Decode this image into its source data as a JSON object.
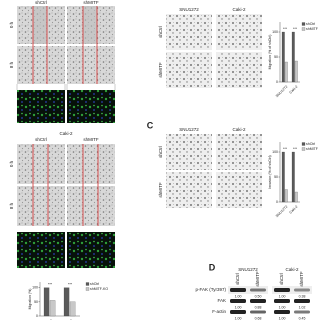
{
  "panel_a": {
    "column_labels": [
      "shCtrl",
      "shMITF"
    ],
    "row_labels": [
      "0 h",
      "8 h"
    ]
  },
  "panel_a2": {
    "cell_line": "Caki-2",
    "column_labels": [
      "shCtrl",
      "shMITF"
    ],
    "row_labels": [
      "0 h",
      "8 h"
    ]
  },
  "panel_b": {
    "cell_lines": [
      "SNU1272",
      "Caki-2"
    ],
    "row_labels": [
      "shCtrl",
      "shMITF"
    ]
  },
  "panel_c": {
    "letter": "C",
    "cell_lines": [
      "SNU1272",
      "Caki-2"
    ],
    "row_labels": [
      "shCtrl",
      "shMITF"
    ]
  },
  "panel_d": {
    "letter": "D",
    "cell_lines": [
      "SNU1272",
      "Caki-2"
    ],
    "column_labels": [
      "shCtrl",
      "shMITF",
      "shCtrl",
      "shMITF"
    ],
    "rows": [
      {
        "label": "p-FAK (Tyr397)",
        "values": [
          "1.00",
          "0.50",
          "1.00",
          "0.38"
        ]
      },
      {
        "label": "FAK",
        "values": [
          "1.00",
          "0.88",
          "1.00",
          "1.02"
        ]
      },
      {
        "label": "F-actin",
        "values": [
          "1.00",
          "0.68",
          "1.00",
          "0.45"
        ]
      }
    ]
  },
  "charts": [
    {
      "type": "bar",
      "y_label": "Migration (% of shCtrl)",
      "categories": [
        "SNU1272",
        "Caki-2"
      ],
      "series": [
        {
          "name": "shCtrl",
          "color": "#5a5a5a",
          "values": [
            100,
            100
          ]
        },
        {
          "name": "shMITF",
          "color": "#c8c8c8",
          "values": [
            40,
            42
          ]
        }
      ],
      "significance": "***",
      "ylim": [
        0,
        120
      ],
      "yticks": [
        0,
        50,
        100
      ]
    },
    {
      "type": "bar",
      "y_label": "Invasion (% of shCtrl)",
      "categories": [
        "SNU1272",
        "Caki-2"
      ],
      "series": [
        {
          "name": "shCtrl",
          "color": "#5a5a5a",
          "values": [
            100,
            100
          ]
        },
        {
          "name": "shMITF",
          "color": "#c8c8c8",
          "values": [
            25,
            20
          ]
        }
      ],
      "significance": "***",
      "ylim": [
        0,
        120
      ],
      "yticks": [
        0,
        50,
        100
      ]
    },
    {
      "type": "bar",
      "y_label": "Migration (%)",
      "categories": [
        "SNU1272",
        "Caki-2"
      ],
      "series": [
        {
          "name": "shCtrl",
          "color": "#5a5a5a",
          "values": [
            100,
            100
          ]
        },
        {
          "name": "shMITF-KO",
          "color": "#c8c8c8",
          "values": [
            55,
            50
          ]
        }
      ],
      "significance": "***",
      "ylim": [
        0,
        120
      ],
      "yticks": [
        0,
        50,
        100
      ]
    }
  ]
}
